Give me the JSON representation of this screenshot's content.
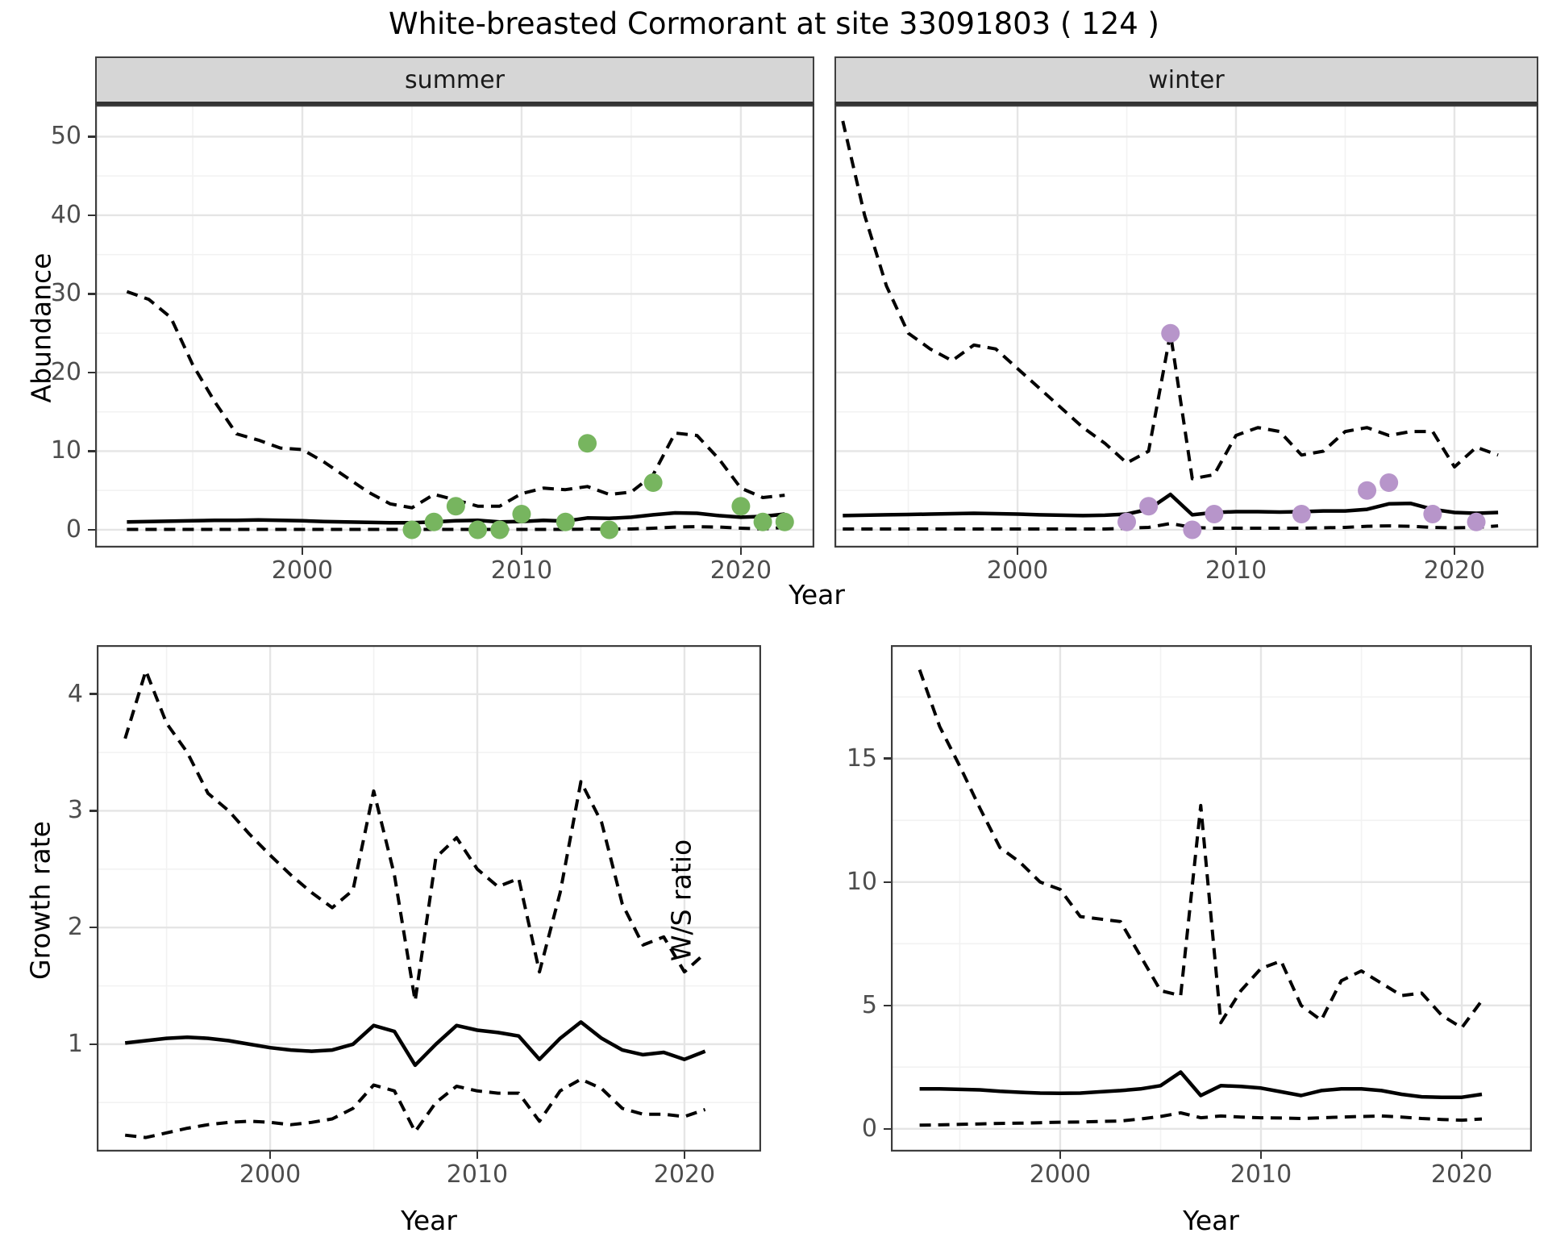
{
  "title": "White-breasted Cormorant at site 33091803 ( 124 )",
  "axes": {
    "x_label": "Year"
  },
  "colors": {
    "summer_points": "#77b55f",
    "winter_points": "#b795ca",
    "median_line": "#000000",
    "ci_line": "#000000",
    "strip_bg": "#d6d6d6",
    "grid_major": "#e5e5e5",
    "grid_minor": "#f2f2f2",
    "panel_border": "#3d3d3d",
    "tick_text": "#4d4d4d"
  },
  "chart_data": [
    {
      "id": "abundance-summer",
      "type": "line",
      "facet_label": "summer",
      "ylabel": "Abundance",
      "xlabel": "Year",
      "xlim": [
        1990.55,
        2023.35
      ],
      "ylim": [
        -2.26,
        54.05
      ],
      "x_major_ticks": [
        2000,
        2010,
        2020
      ],
      "x_minor_ticks": [
        1995,
        2005,
        2015
      ],
      "y_major_ticks": [
        0,
        10,
        20,
        30,
        40,
        50
      ],
      "y_minor_ticks": [
        5,
        15,
        25,
        35,
        45
      ],
      "show_y_axis": true,
      "years": [
        1992,
        1993,
        1994,
        1995,
        1996,
        1997,
        1998,
        1999,
        2000,
        2001,
        2002,
        2003,
        2004,
        2005,
        2006,
        2007,
        2008,
        2009,
        2010,
        2011,
        2012,
        2013,
        2014,
        2015,
        2016,
        2017,
        2018,
        2019,
        2020,
        2021,
        2022
      ],
      "series": [
        {
          "name": "upper_ci",
          "style": "dashed",
          "values": [
            30.3,
            29.3,
            27,
            21,
            16.3,
            12.2,
            11.4,
            10.4,
            10.2,
            8.6,
            6.7,
            4.8,
            3.3,
            2.8,
            4.5,
            3.8,
            3.0,
            3.0,
            4.6,
            5.3,
            5.1,
            5.5,
            4.5,
            4.8,
            7.0,
            12.3,
            12.0,
            9.0,
            5.3,
            4.1,
            4.4
          ]
        },
        {
          "name": "median",
          "style": "solid",
          "values": [
            1.0,
            1.05,
            1.1,
            1.15,
            1.2,
            1.2,
            1.25,
            1.2,
            1.15,
            1.05,
            1.0,
            0.95,
            0.9,
            0.9,
            1.0,
            1.15,
            1.2,
            1.0,
            1.05,
            1.2,
            1.1,
            1.5,
            1.45,
            1.6,
            1.9,
            2.15,
            2.1,
            1.8,
            1.6,
            1.7,
            2.0
          ]
        },
        {
          "name": "lower_ci",
          "style": "dashed",
          "values": [
            0.05,
            0.05,
            0.05,
            0.05,
            0.05,
            0.05,
            0.05,
            0.05,
            0.05,
            0.05,
            0.05,
            0.05,
            0.05,
            0.05,
            0.05,
            0.05,
            0.05,
            0.05,
            0.05,
            0.05,
            0.05,
            0.08,
            0.1,
            0.1,
            0.2,
            0.35,
            0.4,
            0.35,
            0.2,
            0.1,
            0.3
          ]
        }
      ],
      "points": {
        "name": "observed-counts",
        "color_key": "summer_points",
        "x": [
          2005,
          2006,
          2007,
          2008,
          2009,
          2010,
          2012,
          2013,
          2014,
          2016,
          2020,
          2021,
          2022
        ],
        "y": [
          0,
          1,
          3,
          0,
          0,
          2,
          1,
          11,
          0,
          6,
          3,
          1,
          1
        ]
      }
    },
    {
      "id": "abundance-winter",
      "type": "line",
      "facet_label": "winter",
      "ylabel": "Abundance",
      "xlabel": "Year",
      "xlim": [
        1991.62,
        2023.84
      ],
      "ylim": [
        -2.26,
        54.05
      ],
      "x_major_ticks": [
        2000,
        2010,
        2020
      ],
      "x_minor_ticks": [
        1995,
        2005,
        2015
      ],
      "y_major_ticks": [
        0,
        10,
        20,
        30,
        40,
        50
      ],
      "y_minor_ticks": [
        5,
        15,
        25,
        35,
        45
      ],
      "show_y_axis": false,
      "years": [
        1992,
        1993,
        1994,
        1995,
        1996,
        1997,
        1998,
        1999,
        2000,
        2001,
        2002,
        2003,
        2004,
        2005,
        2006,
        2007,
        2008,
        2009,
        2010,
        2011,
        2012,
        2013,
        2014,
        2015,
        2016,
        2017,
        2018,
        2019,
        2020,
        2021,
        2022
      ],
      "series": [
        {
          "name": "upper_ci",
          "style": "dashed",
          "values": [
            52,
            40,
            31,
            25,
            23,
            21.5,
            23.5,
            23,
            20.5,
            18,
            15.5,
            13,
            11,
            8.5,
            10,
            25,
            6.5,
            7,
            12,
            13,
            12.5,
            9.5,
            10,
            12.5,
            13,
            12,
            12.5,
            12.5,
            8,
            10.5,
            9.5
          ]
        },
        {
          "name": "median",
          "style": "solid",
          "values": [
            1.8,
            1.85,
            1.9,
            1.95,
            2.0,
            2.05,
            2.1,
            2.05,
            2.0,
            1.9,
            1.85,
            1.8,
            1.85,
            2.0,
            2.6,
            4.5,
            1.9,
            2.2,
            2.3,
            2.3,
            2.25,
            2.3,
            2.4,
            2.4,
            2.6,
            3.3,
            3.35,
            2.6,
            2.2,
            2.1,
            2.2
          ]
        },
        {
          "name": "lower_ci",
          "style": "dashed",
          "values": [
            0.1,
            0.1,
            0.1,
            0.1,
            0.1,
            0.1,
            0.1,
            0.1,
            0.1,
            0.1,
            0.1,
            0.1,
            0.1,
            0.2,
            0.3,
            0.8,
            0.3,
            0.2,
            0.2,
            0.2,
            0.2,
            0.2,
            0.25,
            0.3,
            0.45,
            0.5,
            0.45,
            0.3,
            0.25,
            0.3,
            0.5
          ]
        }
      ],
      "points": {
        "name": "observed-counts",
        "color_key": "winter_points",
        "x": [
          2005,
          2006,
          2007,
          2008,
          2009,
          2013,
          2016,
          2017,
          2019,
          2021
        ],
        "y": [
          1,
          3,
          25,
          0,
          2,
          2,
          5,
          6,
          2,
          1
        ]
      }
    },
    {
      "id": "growth-rate",
      "type": "line",
      "facet_label": "",
      "ylabel": "Growth rate",
      "xlabel": "Year",
      "xlim": [
        1991.63,
        2023.7
      ],
      "ylim": [
        0.08,
        4.42
      ],
      "x_major_ticks": [
        2000,
        2010,
        2020
      ],
      "x_minor_ticks": [
        1995,
        2005,
        2015
      ],
      "y_major_ticks": [
        1,
        2,
        3,
        4
      ],
      "y_minor_ticks": [
        0.5,
        1.5,
        2.5,
        3.5
      ],
      "show_y_axis": true,
      "years": [
        1993,
        1994,
        1995,
        1996,
        1997,
        1998,
        1999,
        2000,
        2001,
        2002,
        2003,
        2004,
        2005,
        2006,
        2007,
        2008,
        2009,
        2010,
        2011,
        2012,
        2013,
        2014,
        2015,
        2016,
        2017,
        2018,
        2019,
        2020,
        2021
      ],
      "series": [
        {
          "name": "upper_ci",
          "style": "dashed",
          "values": [
            3.62,
            4.2,
            3.75,
            3.5,
            3.15,
            3.0,
            2.8,
            2.62,
            2.45,
            2.3,
            2.17,
            2.32,
            3.17,
            2.45,
            1.37,
            2.6,
            2.77,
            2.5,
            2.35,
            2.42,
            1.62,
            2.3,
            3.25,
            2.9,
            2.2,
            1.85,
            1.92,
            1.62,
            1.78
          ]
        },
        {
          "name": "median",
          "style": "solid",
          "values": [
            1.01,
            1.03,
            1.05,
            1.06,
            1.05,
            1.03,
            1.0,
            0.97,
            0.95,
            0.94,
            0.95,
            1.0,
            1.16,
            1.11,
            0.82,
            1.0,
            1.16,
            1.12,
            1.1,
            1.07,
            0.87,
            1.05,
            1.19,
            1.05,
            0.95,
            0.91,
            0.93,
            0.87,
            0.94
          ]
        },
        {
          "name": "lower_ci",
          "style": "dashed",
          "values": [
            0.22,
            0.2,
            0.24,
            0.28,
            0.31,
            0.33,
            0.34,
            0.33,
            0.31,
            0.33,
            0.36,
            0.45,
            0.65,
            0.6,
            0.25,
            0.5,
            0.64,
            0.6,
            0.58,
            0.58,
            0.34,
            0.6,
            0.7,
            0.62,
            0.45,
            0.4,
            0.4,
            0.38,
            0.44
          ]
        }
      ],
      "points": null
    },
    {
      "id": "ws-ratio",
      "type": "line",
      "facet_label": "",
      "ylabel": "W/S ratio",
      "xlabel": "Year",
      "xlim": [
        1991.57,
        2023.49
      ],
      "ylim": [
        -0.92,
        19.6
      ],
      "x_major_ticks": [
        2000,
        2010,
        2020
      ],
      "x_minor_ticks": [
        1995,
        2005,
        2015
      ],
      "y_major_ticks": [
        0,
        5,
        10,
        15
      ],
      "y_minor_ticks": [
        2.5,
        7.5,
        12.5,
        17.5
      ],
      "show_y_axis": true,
      "years": [
        1993,
        1994,
        1995,
        1996,
        1997,
        1998,
        1999,
        2000,
        2001,
        2002,
        2003,
        2004,
        2005,
        2006,
        2007,
        2008,
        2009,
        2010,
        2011,
        2012,
        2013,
        2014,
        2015,
        2016,
        2017,
        2018,
        2019,
        2020,
        2021
      ],
      "series": [
        {
          "name": "upper_ci",
          "style": "dashed",
          "values": [
            18.6,
            16.3,
            14.7,
            13.0,
            11.4,
            10.8,
            10.0,
            9.7,
            8.6,
            8.5,
            8.4,
            7.0,
            5.6,
            5.4,
            13.1,
            4.3,
            5.6,
            6.5,
            6.8,
            5.0,
            4.4,
            6.0,
            6.4,
            5.9,
            5.4,
            5.5,
            4.6,
            4.1,
            5.2
          ]
        },
        {
          "name": "median",
          "style": "solid",
          "values": [
            1.62,
            1.62,
            1.6,
            1.58,
            1.52,
            1.48,
            1.45,
            1.44,
            1.45,
            1.5,
            1.55,
            1.62,
            1.75,
            2.3,
            1.35,
            1.75,
            1.72,
            1.65,
            1.5,
            1.35,
            1.55,
            1.62,
            1.62,
            1.55,
            1.4,
            1.3,
            1.28,
            1.28,
            1.4
          ]
        },
        {
          "name": "lower_ci",
          "style": "dashed",
          "values": [
            0.15,
            0.16,
            0.18,
            0.2,
            0.22,
            0.23,
            0.25,
            0.27,
            0.28,
            0.3,
            0.32,
            0.4,
            0.5,
            0.65,
            0.45,
            0.52,
            0.48,
            0.45,
            0.44,
            0.42,
            0.45,
            0.48,
            0.5,
            0.52,
            0.48,
            0.42,
            0.38,
            0.35,
            0.4
          ]
        }
      ],
      "points": null
    }
  ]
}
